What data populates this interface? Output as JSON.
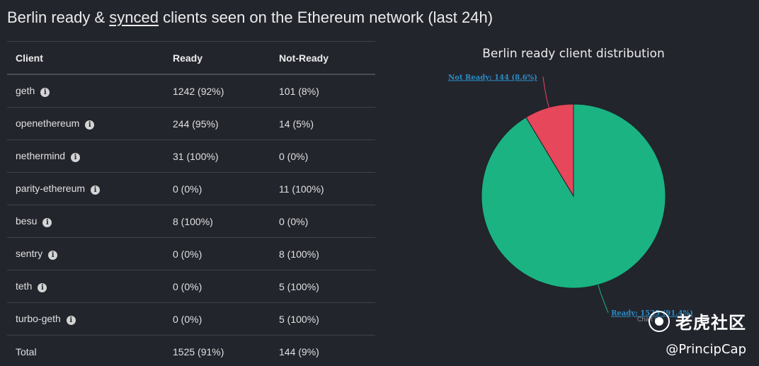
{
  "title": {
    "prefix": "Berlin ready & ",
    "underlined": "synced",
    "suffix": " clients seen on the Ethereum network (last 24h)"
  },
  "table": {
    "headers": [
      "Client",
      "Ready",
      "Not-Ready"
    ],
    "rows": [
      {
        "client": "geth",
        "ready": "1242 (92%)",
        "not_ready": "101 (8%)"
      },
      {
        "client": "openethereum",
        "ready": "244 (95%)",
        "not_ready": "14 (5%)"
      },
      {
        "client": "nethermind",
        "ready": "31 (100%)",
        "not_ready": "0 (0%)"
      },
      {
        "client": "parity-ethereum",
        "ready": "0 (0%)",
        "not_ready": "11 (100%)"
      },
      {
        "client": "besu",
        "ready": "8 (100%)",
        "not_ready": "0 (0%)"
      },
      {
        "client": "sentry",
        "ready": "0 (0%)",
        "not_ready": "8 (100%)"
      },
      {
        "client": "teth",
        "ready": "0 (0%)",
        "not_ready": "5 (100%)"
      },
      {
        "client": "turbo-geth",
        "ready": "0 (0%)",
        "not_ready": "5 (100%)"
      }
    ],
    "total": {
      "client": "Total",
      "ready": "1525 (91%)",
      "not_ready": "144 (9%)"
    },
    "info_icon": "info-circle-icon"
  },
  "chart_data": {
    "type": "pie",
    "title": "Berlin ready client distribution",
    "slices": [
      {
        "name": "Ready",
        "value": 1525,
        "label": "Ready: 1525 (91.4%)",
        "color": "#1ab381"
      },
      {
        "name": "Not Ready",
        "value": 144,
        "label": "Not Ready: 144 (8.6%)",
        "color": "#e6475b"
      }
    ],
    "credits": "Chart pr"
  },
  "watermark": {
    "name": "老虎社区",
    "handle": "@PrincipCap",
    "logo_icon": "tiger-community-logo-icon"
  }
}
